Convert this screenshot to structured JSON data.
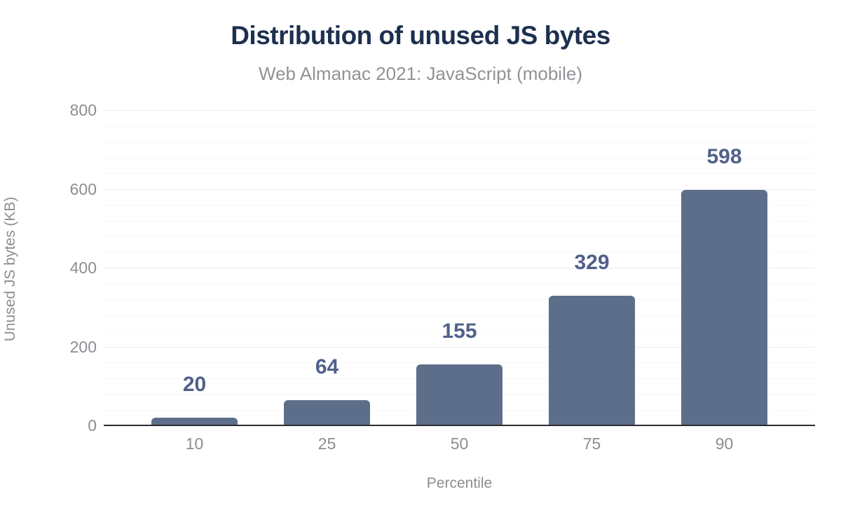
{
  "chart": {
    "title": "Distribution of unused JS bytes",
    "subtitle": "Web Almanac 2021: JavaScript (mobile)"
  },
  "chart_data": {
    "type": "bar",
    "categories": [
      "10",
      "25",
      "50",
      "75",
      "90"
    ],
    "values": [
      20,
      64,
      155,
      329,
      598
    ],
    "data_labels": [
      "20",
      "64",
      "155",
      "329",
      "598"
    ],
    "title": "Distribution of unused JS bytes",
    "subtitle": "Web Almanac 2021: JavaScript (mobile)",
    "xlabel": "Percentile",
    "ylabel": "Unused JS bytes (KB)",
    "ylim": [
      0,
      800
    ],
    "ytick_step": 200,
    "ytick_labels": [
      "0",
      "200",
      "400",
      "600",
      "800"
    ],
    "minor_grid_step": 40,
    "grid": true,
    "legend": false,
    "colors": {
      "bar": "#5d6e8a",
      "data_label": "#50618a",
      "title": "#1e3050",
      "subtitle": "#909396",
      "axis_text": "#8b8e92",
      "grid_major": "#ececec",
      "grid_minor": "#f7f7f8",
      "axis_line": "#2c2c2e",
      "background": "#ffffff"
    }
  }
}
